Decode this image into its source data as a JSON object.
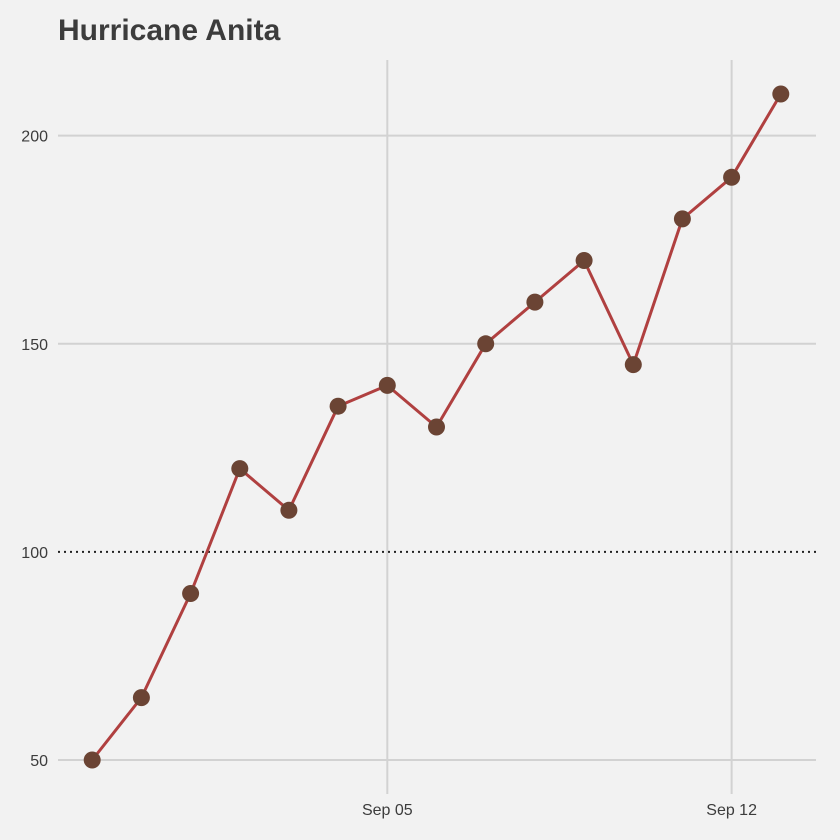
{
  "chart_data": {
    "type": "line",
    "title": "Hurricane Anita",
    "xlabel": "",
    "ylabel": "",
    "x": [
      "2023-08-30",
      "2023-08-31",
      "2023-09-01",
      "2023-09-02",
      "2023-09-03",
      "2023-09-04",
      "2023-09-05",
      "2023-09-06",
      "2023-09-07",
      "2023-09-08",
      "2023-09-09",
      "2023-09-10",
      "2023-09-11",
      "2023-09-12",
      "2023-09-13"
    ],
    "series": [
      {
        "values": [
          50,
          65,
          90,
          120,
          110,
          135,
          140,
          130,
          150,
          160,
          170,
          145,
          180,
          190,
          210
        ]
      }
    ],
    "xlim": [
      "2023-08-29",
      "2023-09-14"
    ],
    "ylim": [
      50,
      210
    ],
    "x_ticks": [
      {
        "date": "2023-09-05",
        "label": "Sep 05"
      },
      {
        "date": "2023-09-12",
        "label": "Sep 12"
      }
    ],
    "y_ticks": [
      50,
      100,
      150,
      200
    ],
    "reference_line": {
      "y": 100,
      "style": "dotted"
    },
    "grid": true,
    "legend": "none",
    "colors": {
      "background": "#f2f2f2",
      "line": "#b04040",
      "marker": "#6b4434",
      "grid": "#d2d2d2",
      "reference": "#222222",
      "text": "#3c3c3c"
    }
  }
}
